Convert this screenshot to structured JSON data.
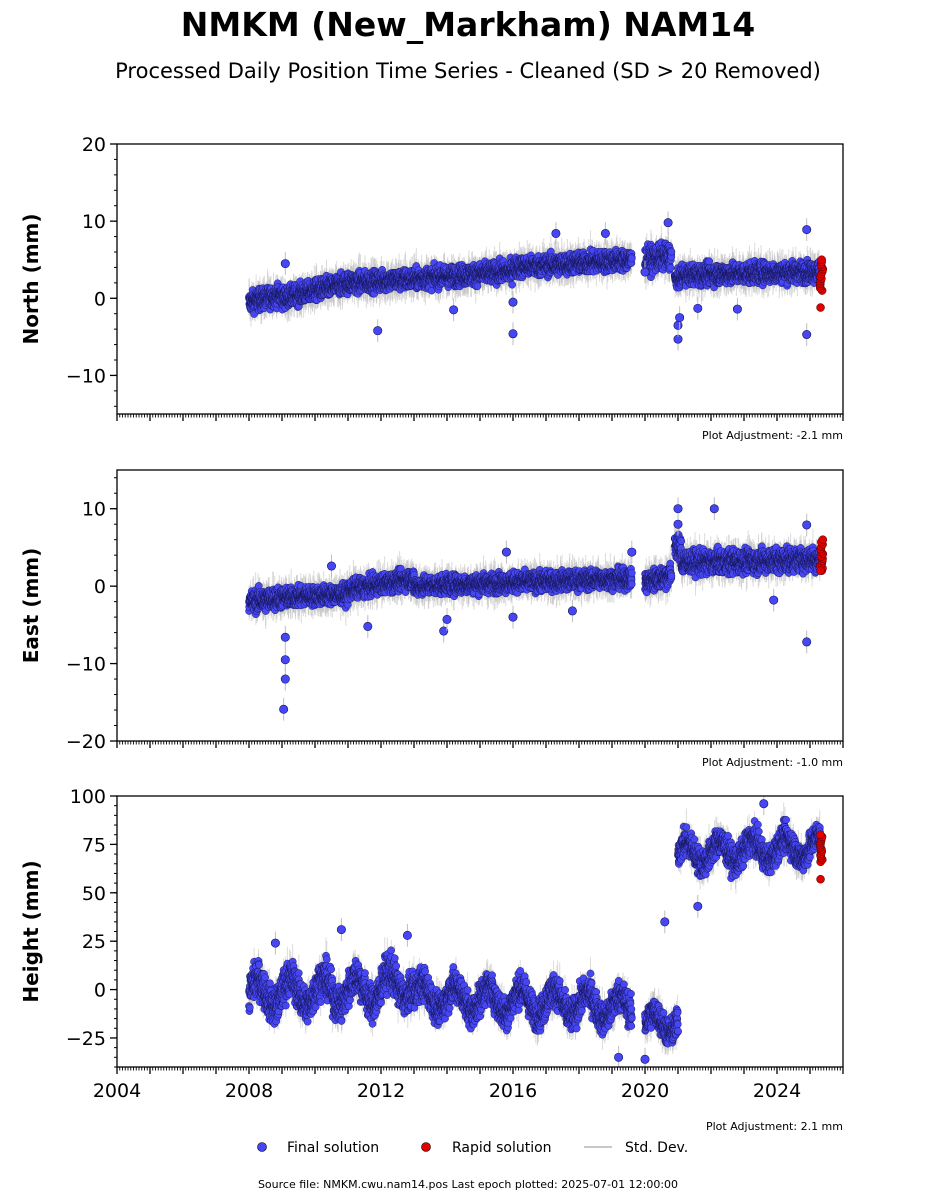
{
  "title": "NMKM (New_Markham) NAM14",
  "subtitle": "Processed Daily Position Time Series - Cleaned (SD > 20 Removed)",
  "footer": "Source file: NMKM.cwu.nam14.pos  Last epoch plotted: 2025-07-01 12:00:00",
  "legend": {
    "final": "Final solution",
    "rapid": "Rapid solution",
    "std": "Std. Dev."
  },
  "colors": {
    "final": "#4646f5",
    "rapid": "#e00000",
    "std": "#bdbdbd"
  },
  "chart_data": [
    {
      "type": "scatter",
      "ylabel": "North (mm)",
      "ylim": [
        -15,
        20
      ],
      "yticks": [
        -10,
        0,
        10,
        20
      ],
      "ytick_labels": [
        "−10",
        "0",
        "10",
        "20"
      ],
      "xlim": [
        2004,
        2026
      ],
      "xticks": [
        2004,
        2008,
        2012,
        2016,
        2020,
        2024
      ],
      "x_tick_labels_shown": false,
      "adjustment": "Plot Adjustment: -2.1 mm",
      "final_segments": [
        {
          "x0": 2008.0,
          "x1": 2009.0,
          "y0": -0.5,
          "y1": 0.5,
          "spread": 1.3
        },
        {
          "x0": 2009.0,
          "x1": 2011.0,
          "y0": 0.0,
          "y1": 2.0,
          "spread": 1.3
        },
        {
          "x0": 2011.0,
          "x1": 2013.0,
          "y0": 2.0,
          "y1": 2.5,
          "spread": 1.3
        },
        {
          "x0": 2013.0,
          "x1": 2016.0,
          "y0": 2.5,
          "y1": 3.5,
          "spread": 1.3
        },
        {
          "x0": 2016.0,
          "x1": 2019.6,
          "y0": 4.0,
          "y1": 5.0,
          "spread": 1.3
        },
        {
          "x0": 2020.0,
          "x1": 2020.8,
          "y0": 5.0,
          "y1": 5.5,
          "spread": 1.6
        },
        {
          "x0": 2020.9,
          "x1": 2021.1,
          "y0": 2.5,
          "y1": 2.5,
          "spread": 1.0
        },
        {
          "x0": 2021.1,
          "x1": 2025.3,
          "y0": 3.0,
          "y1": 3.5,
          "spread": 1.3
        }
      ],
      "final_outliers": [
        {
          "x": 2009.1,
          "y": 4.5
        },
        {
          "x": 2011.9,
          "y": -4.2
        },
        {
          "x": 2016.0,
          "y": -4.6
        },
        {
          "x": 2016.0,
          "y": -0.5
        },
        {
          "x": 2020.7,
          "y": 9.8
        },
        {
          "x": 2021.0,
          "y": -5.3
        },
        {
          "x": 2021.0,
          "y": -3.5
        },
        {
          "x": 2021.05,
          "y": -2.5
        },
        {
          "x": 2020.0,
          "y": 3.4
        },
        {
          "x": 2024.9,
          "y": 8.9
        },
        {
          "x": 2024.9,
          "y": -4.7
        },
        {
          "x": 2014.2,
          "y": -1.5
        },
        {
          "x": 2021.6,
          "y": -1.3
        },
        {
          "x": 2022.8,
          "y": -1.4
        },
        {
          "x": 2018.8,
          "y": 8.4
        },
        {
          "x": 2017.3,
          "y": 8.4
        }
      ],
      "rapid": {
        "x0": 2025.3,
        "x1": 2025.4,
        "y0": 1.0,
        "y1": 5.0,
        "low": -1.2
      }
    },
    {
      "type": "scatter",
      "ylabel": "East (mm)",
      "ylim": [
        -20,
        15
      ],
      "yticks": [
        -20,
        -10,
        0,
        10
      ],
      "ytick_labels": [
        "−20",
        "−10",
        "0",
        "10"
      ],
      "xlim": [
        2004,
        2026
      ],
      "xticks": [
        2004,
        2008,
        2012,
        2016,
        2020,
        2024
      ],
      "x_tick_labels_shown": false,
      "adjustment": "Plot Adjustment: -1.0 mm",
      "final_segments": [
        {
          "x0": 2008.0,
          "x1": 2009.0,
          "y0": -2.0,
          "y1": -1.5,
          "spread": 1.4
        },
        {
          "x0": 2009.0,
          "x1": 2011.0,
          "y0": -1.5,
          "y1": -1.0,
          "spread": 1.2
        },
        {
          "x0": 2011.0,
          "x1": 2013.0,
          "y0": -0.5,
          "y1": 1.0,
          "spread": 1.2
        },
        {
          "x0": 2013.0,
          "x1": 2016.0,
          "y0": 0.0,
          "y1": 0.5,
          "spread": 1.2
        },
        {
          "x0": 2016.0,
          "x1": 2019.6,
          "y0": 0.5,
          "y1": 1.0,
          "spread": 1.2
        },
        {
          "x0": 2020.0,
          "x1": 2020.8,
          "y0": 0.5,
          "y1": 1.5,
          "spread": 1.4
        },
        {
          "x0": 2020.9,
          "x1": 2021.1,
          "y0": 5.5,
          "y1": 4.5,
          "spread": 1.6
        },
        {
          "x0": 2021.1,
          "x1": 2025.3,
          "y0": 3.0,
          "y1": 3.5,
          "spread": 1.5
        }
      ],
      "final_outliers": [
        {
          "x": 2009.1,
          "y": -6.6
        },
        {
          "x": 2009.1,
          "y": -9.5
        },
        {
          "x": 2009.1,
          "y": -12.0
        },
        {
          "x": 2009.05,
          "y": -15.9
        },
        {
          "x": 2013.9,
          "y": -5.8
        },
        {
          "x": 2014.0,
          "y": -4.3
        },
        {
          "x": 2011.6,
          "y": -5.2
        },
        {
          "x": 2016.0,
          "y": -4.0
        },
        {
          "x": 2021.0,
          "y": 10.0
        },
        {
          "x": 2021.0,
          "y": 8.0
        },
        {
          "x": 2022.1,
          "y": 10.0
        },
        {
          "x": 2024.9,
          "y": -7.2
        },
        {
          "x": 2024.9,
          "y": 7.9
        },
        {
          "x": 2023.9,
          "y": -1.8
        },
        {
          "x": 2017.8,
          "y": -3.2
        },
        {
          "x": 2010.5,
          "y": 2.6
        },
        {
          "x": 2019.6,
          "y": 4.4
        },
        {
          "x": 2015.8,
          "y": 4.4
        }
      ],
      "rapid": {
        "x0": 2025.3,
        "x1": 2025.4,
        "y0": 2.0,
        "y1": 6.0,
        "low": 2.0
      }
    },
    {
      "type": "scatter",
      "ylabel": "Height (mm)",
      "ylim": [
        -40,
        100
      ],
      "yticks": [
        -25,
        0,
        25,
        50,
        75,
        100
      ],
      "ytick_labels": [
        "−25",
        "0",
        "25",
        "50",
        "75",
        "100"
      ],
      "xlim": [
        2004,
        2026
      ],
      "xticks": [
        2004,
        2008,
        2012,
        2016,
        2020,
        2024
      ],
      "x_tick_labels": [
        "2004",
        "2008",
        "2012",
        "2016",
        "2020",
        "2024"
      ],
      "x_tick_labels_shown": true,
      "adjustment": "Plot Adjustment: 2.1 mm",
      "final_segments": [
        {
          "x0": 2008.0,
          "x1": 2012.0,
          "y0": -2.0,
          "y1": 0.0,
          "spread": 9.0
        },
        {
          "x0": 2012.0,
          "x1": 2013.0,
          "y0": 2.0,
          "y1": 3.0,
          "spread": 9.0
        },
        {
          "x0": 2013.0,
          "x1": 2017.0,
          "y0": -3.0,
          "y1": -7.0,
          "spread": 8.0
        },
        {
          "x0": 2017.0,
          "x1": 2019.6,
          "y0": -6.0,
          "y1": -10.0,
          "spread": 8.0
        },
        {
          "x0": 2020.0,
          "x1": 2021.0,
          "y0": -18.0,
          "y1": -16.0,
          "spread": 7.0
        },
        {
          "x0": 2021.0,
          "x1": 2025.3,
          "y0": 70.0,
          "y1": 74.0,
          "spread": 7.0
        }
      ],
      "final_outliers": [
        {
          "x": 2010.8,
          "y": 31.0
        },
        {
          "x": 2020.6,
          "y": 35.0
        },
        {
          "x": 2021.6,
          "y": 43.0
        },
        {
          "x": 2023.6,
          "y": 96.0
        },
        {
          "x": 2012.8,
          "y": 28.0
        },
        {
          "x": 2008.8,
          "y": 24.0
        },
        {
          "x": 2020.0,
          "y": -36.0
        },
        {
          "x": 2019.2,
          "y": -35.0
        }
      ],
      "rapid": {
        "x0": 2025.3,
        "x1": 2025.4,
        "y0": 66.0,
        "y1": 80.0,
        "low": 57.0
      }
    }
  ]
}
